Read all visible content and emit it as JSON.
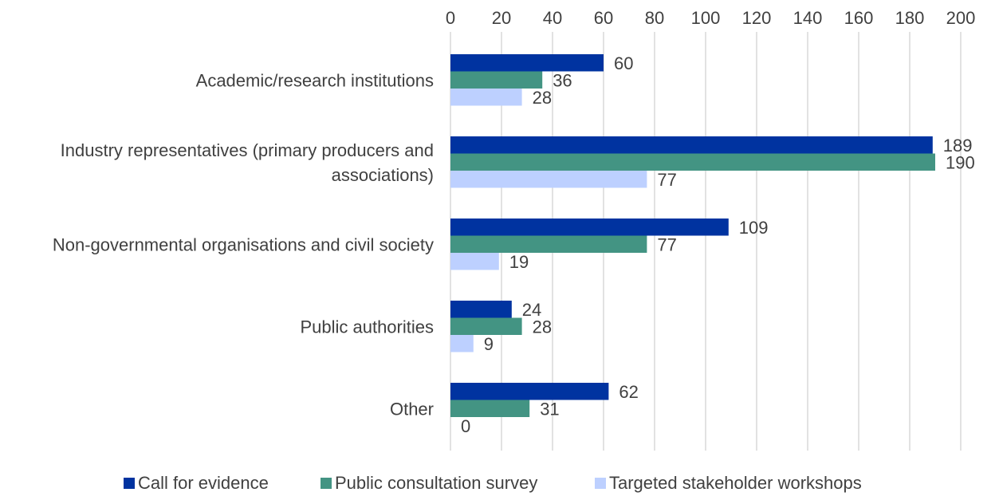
{
  "chart_data": {
    "type": "bar",
    "orientation": "horizontal",
    "title": "",
    "xlabel": "",
    "ylabel": "",
    "xlim": [
      0,
      200
    ],
    "x_ticks": [
      "0",
      "20",
      "40",
      "60",
      "80",
      "100",
      "120",
      "140",
      "160",
      "180",
      "200"
    ],
    "x_axis_position": "top",
    "grid": true,
    "legend_position": "bottom",
    "categories": [
      [
        "Academic/research institutions"
      ],
      [
        "Industry representatives (primary producers and",
        "associations)"
      ],
      [
        "Non-governmental organisations and civil society"
      ],
      [
        "Public authorities"
      ],
      [
        "Other"
      ]
    ],
    "series": [
      {
        "name": "Call for evidence",
        "color": "#0033a0",
        "values": [
          60,
          189,
          109,
          24,
          62
        ]
      },
      {
        "name": "Public consultation survey",
        "color": "#439483",
        "values": [
          36,
          190,
          77,
          28,
          31
        ]
      },
      {
        "name": "Targeted stakeholder workshops",
        "color": "#bdd0ff",
        "values": [
          28,
          77,
          19,
          9,
          0
        ]
      }
    ]
  }
}
